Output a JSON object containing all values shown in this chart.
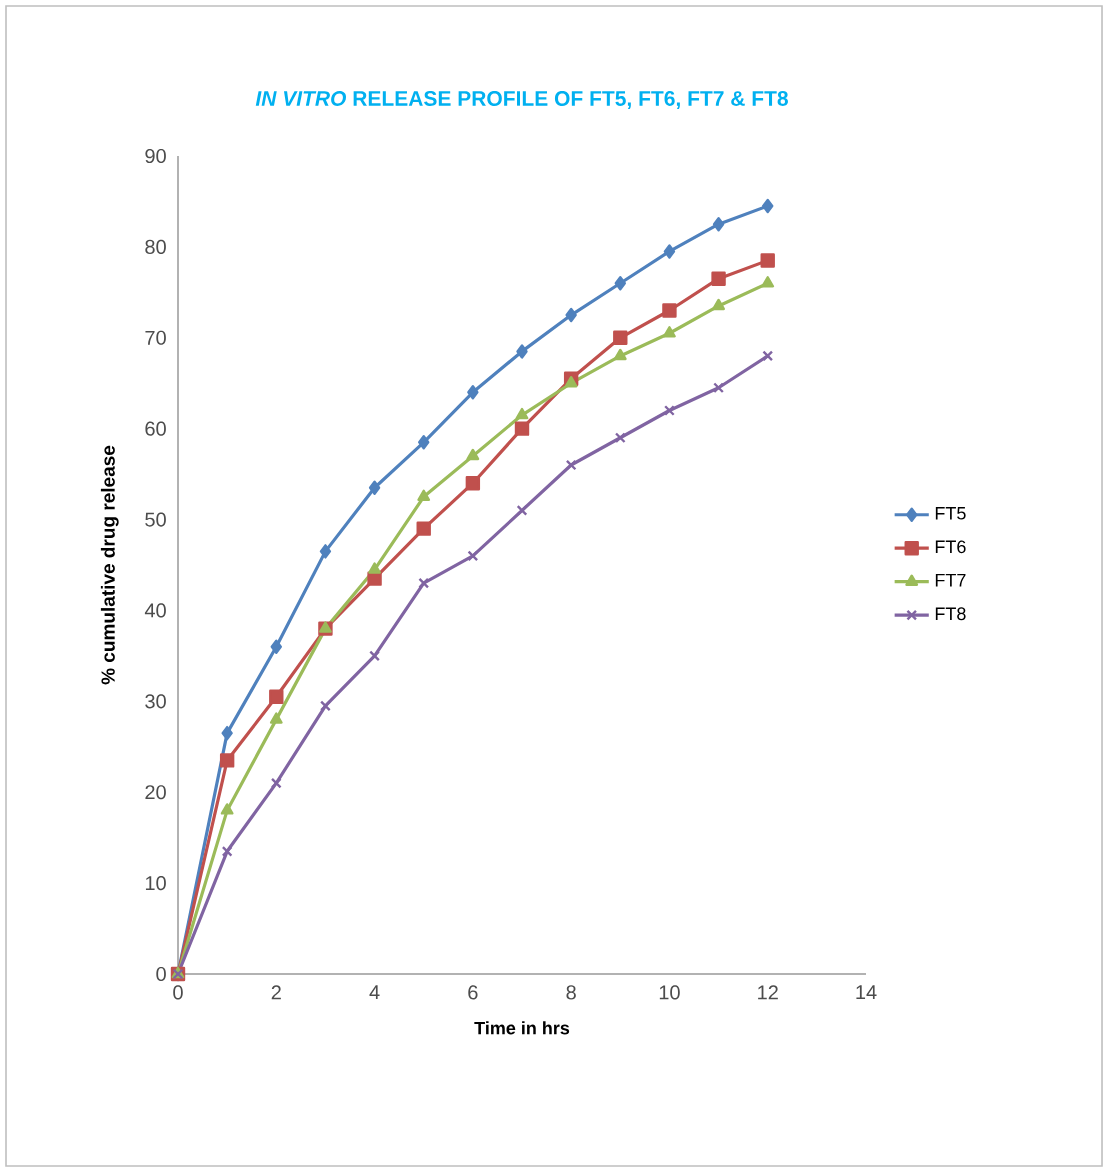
{
  "chart_data": {
    "type": "line",
    "title": "*IN VITRO* RELEASE PROFILE OF FT5, FT6, FT7 & FT8",
    "xlabel": "Time in hrs",
    "ylabel": "% cumulative drug release",
    "x": [
      0,
      1,
      2,
      3,
      4,
      5,
      6,
      7,
      8,
      9,
      10,
      11,
      12
    ],
    "series": [
      {
        "name": "FT5",
        "color": "#4f81bd",
        "marker": "diamond",
        "values": [
          0,
          26.5,
          36,
          46.5,
          53.5,
          58.5,
          64,
          68.5,
          72.5,
          76,
          79.5,
          82.5,
          84.5
        ]
      },
      {
        "name": "FT6",
        "color": "#c0504d",
        "marker": "square",
        "values": [
          0,
          23.5,
          30.5,
          38,
          43.5,
          49,
          54,
          60,
          65.5,
          70,
          73,
          76.5,
          78.5
        ]
      },
      {
        "name": "FT7",
        "color": "#9bbb59",
        "marker": "triangle",
        "values": [
          0,
          18,
          28,
          38,
          44.5,
          52.5,
          57,
          61.5,
          65,
          68,
          70.5,
          73.5,
          76
        ]
      },
      {
        "name": "FT8",
        "color": "#8064a2",
        "marker": "cross",
        "values": [
          0,
          13.5,
          21,
          29.5,
          35,
          43,
          46,
          51,
          56,
          59,
          62,
          64.5,
          68
        ]
      }
    ],
    "xlim": [
      0,
      14
    ],
    "xticks": [
      0,
      2,
      4,
      6,
      8,
      10,
      12,
      14
    ],
    "ylim": [
      0,
      90
    ],
    "yticks": [
      0,
      10,
      20,
      30,
      40,
      50,
      60,
      70,
      80,
      90
    ],
    "grid": false,
    "legend": "right",
    "line_style": "solid"
  }
}
